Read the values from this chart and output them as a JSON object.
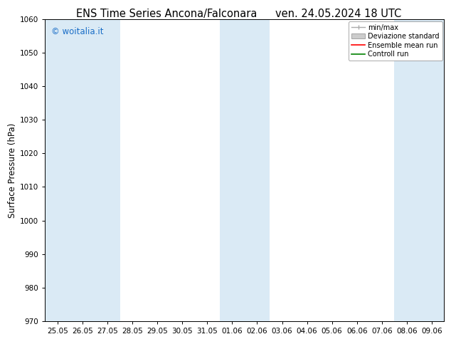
{
  "title_left": "ENS Time Series Ancona/Falconara",
  "title_right": "ven. 24.05.2024 18 UTC",
  "ylabel": "Surface Pressure (hPa)",
  "ylim": [
    970,
    1060
  ],
  "yticks": [
    970,
    980,
    990,
    1000,
    1010,
    1020,
    1030,
    1040,
    1050,
    1060
  ],
  "watermark": "© woitalia.it",
  "bg_color": "#ffffff",
  "plot_bg_color": "#ffffff",
  "shade_color": "#daeaf5",
  "num_days": 16,
  "x_labels": [
    "25.05",
    "26.05",
    "27.05",
    "28.05",
    "29.05",
    "30.05",
    "31.05",
    "01.06",
    "02.06",
    "03.06",
    "04.06",
    "05.06",
    "06.06",
    "07.06",
    "08.06",
    "09.06"
  ],
  "shaded_columns": [
    0,
    1,
    2,
    7,
    8,
    14,
    15
  ],
  "legend_minmax_color": "#aaaaaa",
  "legend_std_color": "#cccccc",
  "legend_mean_color": "#ff0000",
  "legend_ctrl_color": "#008000",
  "title_fontsize": 10.5,
  "tick_fontsize": 7.5,
  "ylabel_fontsize": 8.5,
  "legend_fontsize": 7,
  "watermark_color": "#1a6ec7",
  "watermark_fontsize": 8.5
}
